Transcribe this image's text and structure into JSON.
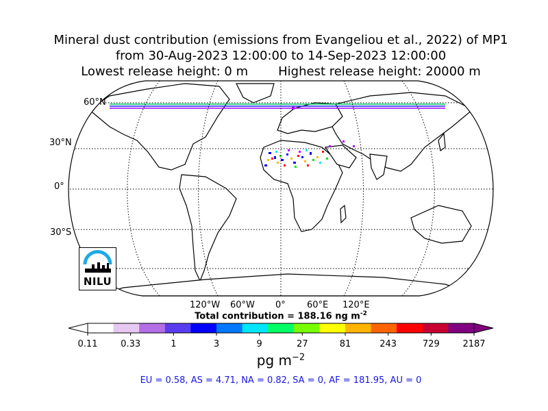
{
  "title": {
    "line1": "Mineral dust contribution (emissions from Evangeliou et al., 2022) of MP1",
    "line2": "from 30-Aug-2023 12:00:00 to 14-Sep-2023 12:00:00",
    "lowest_release": "Lowest release height: 0 m",
    "highest_release": "Highest release height: 20000 m"
  },
  "map": {
    "projection": "Robinson",
    "lat_labels": [
      "60°N",
      "30°N",
      "0°",
      "30°S"
    ],
    "lon_labels": [
      "120°W",
      "60°W",
      "0°",
      "60°E",
      "120°E"
    ],
    "gridlines": true
  },
  "total_contribution": "Total contribution = 188.16 ng m",
  "total_contribution_exponent": "-2",
  "colorbar": {
    "ticks": [
      "0.11",
      "0.33",
      "1",
      "3",
      "9",
      "27",
      "81",
      "243",
      "729",
      "2187"
    ],
    "units": "pg m",
    "units_exponent": "−2",
    "colors": [
      "#ffffff",
      "#e6c8f0",
      "#b46ee6",
      "#5a3cf0",
      "#0000ff",
      "#0078ff",
      "#00e6ff",
      "#00ff64",
      "#78ff00",
      "#ffff00",
      "#ffb400",
      "#ff6400",
      "#ff0000",
      "#c80032",
      "#800080"
    ],
    "extend": "both"
  },
  "regions": "EU = 0.58,  AS = 4.71,  NA = 0.82,  SA = 0,  AF = 181.95,  AU = 0",
  "logo": {
    "text": "NILU",
    "accent_color": "#1eaae6"
  }
}
